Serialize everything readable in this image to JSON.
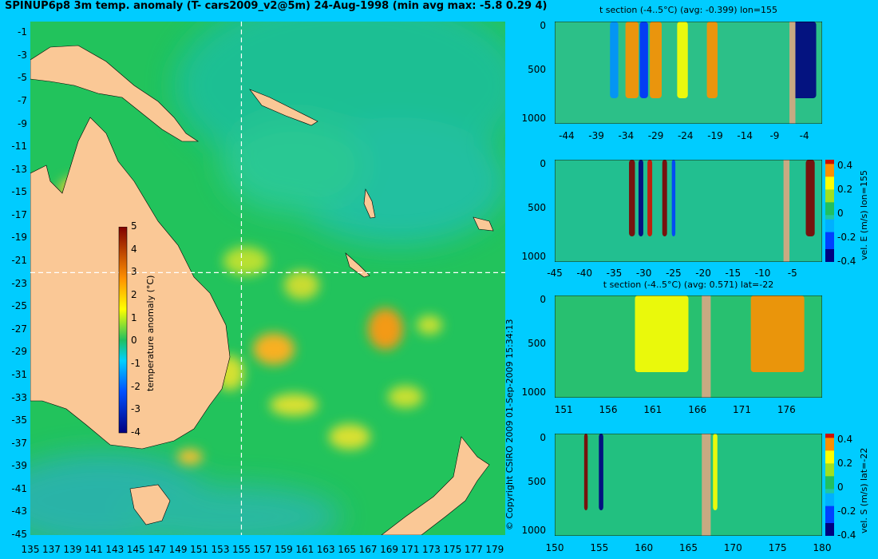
{
  "title": "SPINUP6p8 3m temp. anomaly (T- cars2009_v2@5m) 24-Aug-1998 (min avg max: -5.8 0.29 4)",
  "copyright": "© Copyright CSIRO 2009   01-Sep-2009 15:34:13",
  "colors": {
    "page_bg": "#00ccff",
    "land": "#fac896",
    "section_land": "#c8aa82",
    "ocean_base": "#20c060",
    "cross_lines": "#ffffff"
  },
  "chart_data": [
    {
      "type": "heatmap",
      "name": "map",
      "x": {
        "min": 135,
        "max": 180,
        "ticks": [
          "135",
          "137",
          "139",
          "141",
          "143",
          "145",
          "147",
          "149",
          "151",
          "153",
          "155",
          "157",
          "159",
          "161",
          "163",
          "165",
          "167",
          "169",
          "171",
          "173",
          "175",
          "177",
          "179"
        ]
      },
      "y": {
        "min": -45,
        "max": 0,
        "ticks": [
          "-1",
          "-3",
          "-5",
          "-7",
          "-9",
          "-11",
          "-13",
          "-15",
          "-17",
          "-19",
          "-21",
          "-23",
          "-25",
          "-27",
          "-29",
          "-31",
          "-33",
          "-35",
          "-37",
          "-39",
          "-41",
          "-43",
          "-45"
        ]
      },
      "colorbar": {
        "label": "temperature anomaly (°C)",
        "min": -4,
        "max": 5,
        "ticks": [
          "5",
          "4",
          "3",
          "2",
          "1",
          "0",
          "-1",
          "-2",
          "-3",
          "-4"
        ]
      },
      "section_lon": 155,
      "section_lat": -22
    },
    {
      "type": "heatmap",
      "name": "t-section-lon",
      "title": "t section (-4..5°C) (avg: -0.399) lon=155",
      "x": {
        "min": -46,
        "max": -1,
        "ticks": [
          "-44",
          "-39",
          "-34",
          "-29",
          "-24",
          "-19",
          "-14",
          "-9",
          "-4"
        ]
      },
      "y": {
        "min": 0,
        "max": 1050,
        "ticks": [
          "0",
          "500",
          "1000"
        ]
      },
      "land_x": [
        -6.5,
        -5.5
      ],
      "features": [
        {
          "x": -33,
          "w": 2.2,
          "level": 3.5
        },
        {
          "x": -29,
          "w": 2.0,
          "level": 3.0
        },
        {
          "x": -24.5,
          "w": 1.8,
          "level": 2.5
        },
        {
          "x": -19.5,
          "w": 1.8,
          "level": 3.5
        },
        {
          "x": -36,
          "w": 1.4,
          "level": -2.0
        },
        {
          "x": -31,
          "w": 1.4,
          "level": -2.5
        },
        {
          "x": -4,
          "w": 4.0,
          "level": -4.0
        }
      ]
    },
    {
      "type": "heatmap",
      "name": "vel-e-section",
      "x": {
        "min": -45,
        "max": 0,
        "ticks": [
          "-45",
          "-40",
          "-35",
          "-30",
          "-25",
          "-20",
          "-15",
          "-10",
          "-5"
        ]
      },
      "y": {
        "min": 0,
        "max": 1050,
        "ticks": [
          "0",
          "500",
          "1000"
        ]
      },
      "colorbar": {
        "label": "vel. E (m/s) lon=155",
        "min": -0.4,
        "max": 0.45,
        "ticks": [
          "0.4",
          "0.2",
          "0",
          "-0.2",
          "-0.4"
        ]
      },
      "land_x": [
        -6.5,
        -5.5
      ],
      "features": [
        {
          "x": -32,
          "w": 1.0,
          "level": 0.45
        },
        {
          "x": -30.5,
          "w": 0.8,
          "level": -0.35
        },
        {
          "x": -29,
          "w": 0.8,
          "level": 0.4
        },
        {
          "x": -26.5,
          "w": 0.8,
          "level": 0.45
        },
        {
          "x": -25,
          "w": 0.6,
          "level": -0.3
        },
        {
          "x": -2,
          "w": 1.5,
          "level": 0.45
        }
      ]
    },
    {
      "type": "heatmap",
      "name": "t-section-lat",
      "title": "t section (-4..5°C) (avg: 0.571) lat=-22",
      "x": {
        "min": 150,
        "max": 180,
        "ticks": [
          "151",
          "156",
          "161",
          "166",
          "171",
          "176"
        ]
      },
      "y": {
        "min": 0,
        "max": 1050,
        "ticks": [
          "0",
          "500",
          "1000"
        ]
      },
      "land_x": [
        166.5,
        167.5
      ],
      "features": [
        {
          "x": 162,
          "w": 6,
          "level": 2.5
        },
        {
          "x": 175,
          "w": 6,
          "level": 3.0
        }
      ]
    },
    {
      "type": "heatmap",
      "name": "vel-s-section",
      "x": {
        "min": 150,
        "max": 180,
        "ticks": [
          "150",
          "155",
          "160",
          "165",
          "170",
          "175",
          "180"
        ]
      },
      "y": {
        "min": 0,
        "max": 1050,
        "ticks": [
          "0",
          "500",
          "1000"
        ]
      },
      "colorbar": {
        "label": "vel. S (m/s) lat=-22",
        "min": -0.4,
        "max": 0.45,
        "ticks": [
          "0.4",
          "0.2",
          "0",
          "-0.2",
          "-0.4"
        ]
      },
      "land_x": [
        166.5,
        167.5
      ],
      "features": [
        {
          "x": 153.5,
          "w": 0.4,
          "level": 0.45
        },
        {
          "x": 155.2,
          "w": 0.5,
          "level": -0.4
        },
        {
          "x": 168,
          "w": 0.5,
          "level": 0.25
        }
      ]
    }
  ]
}
